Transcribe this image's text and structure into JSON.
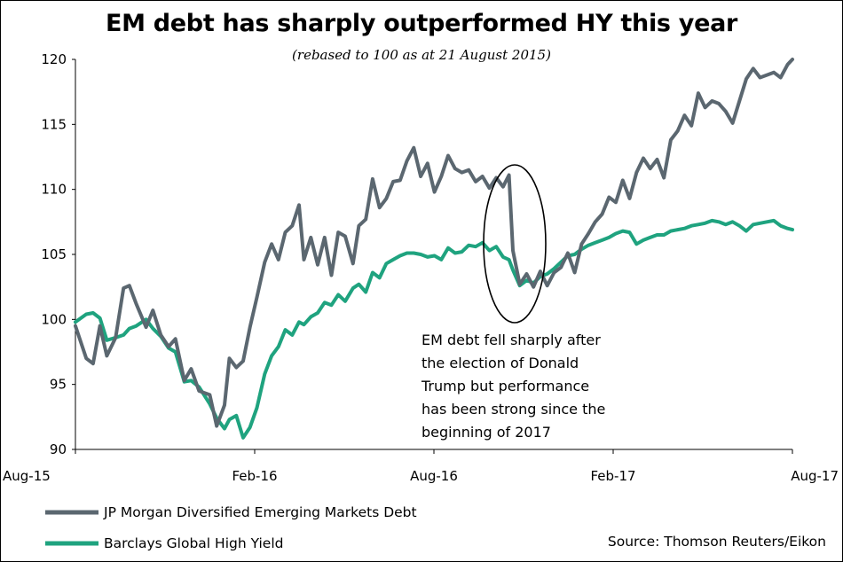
{
  "title": "EM debt has sharply outperformed HY this year",
  "subtitle": "(rebased to 100 as at 21 August 2015)",
  "source": "Source: Thomson Reuters/Eikon",
  "annotation": [
    "EM debt fell sharply after",
    "the election of Donald",
    "Trump but performance",
    "has been strong since the",
    "beginning of 2017"
  ],
  "chart_data": {
    "type": "line",
    "title": "EM debt has sharply outperformed HY this year",
    "subtitle": "(rebased to 100 as at 21 August 2015)",
    "xlabel": "",
    "ylabel": "",
    "ylim": [
      90,
      120
    ],
    "yticks": [
      90,
      95,
      100,
      105,
      110,
      115,
      120
    ],
    "xticks": [
      "Aug-15",
      "Feb-16",
      "Aug-16",
      "Feb-17",
      "Aug-17"
    ],
    "xlim": [
      "2015-08-21",
      "2017-08-21"
    ],
    "grid": false,
    "legend": "bottom-left",
    "series": [
      {
        "name": "JP Morgan Diversified Emerging Markets Debt",
        "color": "#5b6770",
        "points": [
          [
            "2015-08-21",
            99.5
          ],
          [
            "2015-09-01",
            97.0
          ],
          [
            "2015-09-08",
            96.6
          ],
          [
            "2015-09-15",
            99.5
          ],
          [
            "2015-09-22",
            97.2
          ],
          [
            "2015-10-01",
            98.6
          ],
          [
            "2015-10-09",
            102.4
          ],
          [
            "2015-10-15",
            102.6
          ],
          [
            "2015-10-22",
            101.2
          ],
          [
            "2015-11-01",
            99.4
          ],
          [
            "2015-11-08",
            100.7
          ],
          [
            "2015-11-16",
            98.8
          ],
          [
            "2015-11-24",
            97.9
          ],
          [
            "2015-12-01",
            98.5
          ],
          [
            "2015-12-10",
            95.3
          ],
          [
            "2015-12-17",
            96.2
          ],
          [
            "2015-12-25",
            94.5
          ],
          [
            "2016-01-05",
            94.2
          ],
          [
            "2016-01-12",
            91.8
          ],
          [
            "2016-01-20",
            93.4
          ],
          [
            "2016-01-25",
            97.0
          ],
          [
            "2016-02-01",
            96.3
          ],
          [
            "2016-02-08",
            96.8
          ],
          [
            "2016-02-15",
            99.4
          ],
          [
            "2016-02-22",
            101.7
          ],
          [
            "2016-03-01",
            104.4
          ],
          [
            "2016-03-08",
            105.8
          ],
          [
            "2016-03-15",
            104.6
          ],
          [
            "2016-03-22",
            106.7
          ],
          [
            "2016-03-29",
            107.2
          ],
          [
            "2016-04-05",
            108.8
          ],
          [
            "2016-04-10",
            104.6
          ],
          [
            "2016-04-17",
            106.3
          ],
          [
            "2016-04-24",
            104.2
          ],
          [
            "2016-05-01",
            106.3
          ],
          [
            "2016-05-08",
            103.4
          ],
          [
            "2016-05-15",
            106.7
          ],
          [
            "2016-05-22",
            106.4
          ],
          [
            "2016-05-30",
            104.3
          ],
          [
            "2016-06-05",
            107.2
          ],
          [
            "2016-06-12",
            107.7
          ],
          [
            "2016-06-19",
            110.8
          ],
          [
            "2016-06-26",
            108.6
          ],
          [
            "2016-07-03",
            109.3
          ],
          [
            "2016-07-10",
            110.6
          ],
          [
            "2016-07-17",
            110.7
          ],
          [
            "2016-07-24",
            112.2
          ],
          [
            "2016-07-31",
            113.2
          ],
          [
            "2016-08-07",
            111.0
          ],
          [
            "2016-08-14",
            112.0
          ],
          [
            "2016-08-21",
            109.8
          ],
          [
            "2016-08-28",
            111.0
          ],
          [
            "2016-09-04",
            112.6
          ],
          [
            "2016-09-11",
            111.6
          ],
          [
            "2016-09-18",
            111.3
          ],
          [
            "2016-09-25",
            111.5
          ],
          [
            "2016-10-02",
            110.6
          ],
          [
            "2016-10-09",
            111.0
          ],
          [
            "2016-10-16",
            110.1
          ],
          [
            "2016-10-23",
            110.9
          ],
          [
            "2016-10-30",
            110.2
          ],
          [
            "2016-11-05",
            111.1
          ],
          [
            "2016-11-09",
            105.3
          ],
          [
            "2016-11-16",
            102.7
          ],
          [
            "2016-11-23",
            103.5
          ],
          [
            "2016-11-30",
            102.5
          ],
          [
            "2016-12-07",
            103.7
          ],
          [
            "2016-12-14",
            102.6
          ],
          [
            "2016-12-21",
            103.6
          ],
          [
            "2016-12-28",
            104.0
          ],
          [
            "2017-01-04",
            105.1
          ],
          [
            "2017-01-11",
            103.6
          ],
          [
            "2017-01-18",
            105.8
          ],
          [
            "2017-01-25",
            106.6
          ],
          [
            "2017-02-01",
            107.5
          ],
          [
            "2017-02-08",
            108.1
          ],
          [
            "2017-02-15",
            109.4
          ],
          [
            "2017-02-22",
            109.0
          ],
          [
            "2017-03-01",
            110.7
          ],
          [
            "2017-03-08",
            109.3
          ],
          [
            "2017-03-15",
            111.3
          ],
          [
            "2017-03-22",
            112.4
          ],
          [
            "2017-03-29",
            111.6
          ],
          [
            "2017-04-05",
            112.3
          ],
          [
            "2017-04-12",
            110.9
          ],
          [
            "2017-04-19",
            113.8
          ],
          [
            "2017-04-26",
            114.5
          ],
          [
            "2017-05-03",
            115.7
          ],
          [
            "2017-05-10",
            114.9
          ],
          [
            "2017-05-17",
            117.4
          ],
          [
            "2017-05-24",
            116.3
          ],
          [
            "2017-05-31",
            116.8
          ],
          [
            "2017-06-07",
            116.6
          ],
          [
            "2017-06-14",
            116.0
          ],
          [
            "2017-06-21",
            115.1
          ],
          [
            "2017-06-28",
            116.8
          ],
          [
            "2017-07-05",
            118.5
          ],
          [
            "2017-07-12",
            119.3
          ],
          [
            "2017-07-19",
            118.6
          ],
          [
            "2017-07-26",
            118.8
          ],
          [
            "2017-08-02",
            119.0
          ],
          [
            "2017-08-09",
            118.6
          ],
          [
            "2017-08-16",
            119.6
          ],
          [
            "2017-08-21",
            120.0
          ]
        ]
      },
      {
        "name": "Barclays Global High Yield",
        "color": "#1fa37f",
        "points": [
          [
            "2015-08-21",
            99.8
          ],
          [
            "2015-09-01",
            100.4
          ],
          [
            "2015-09-08",
            100.5
          ],
          [
            "2015-09-15",
            100.1
          ],
          [
            "2015-09-22",
            98.4
          ],
          [
            "2015-10-01",
            98.6
          ],
          [
            "2015-10-09",
            98.8
          ],
          [
            "2015-10-15",
            99.3
          ],
          [
            "2015-10-22",
            99.5
          ],
          [
            "2015-11-01",
            100.0
          ],
          [
            "2015-11-08",
            99.3
          ],
          [
            "2015-11-16",
            98.7
          ],
          [
            "2015-11-24",
            97.8
          ],
          [
            "2015-12-01",
            97.5
          ],
          [
            "2015-12-10",
            95.2
          ],
          [
            "2015-12-17",
            95.3
          ],
          [
            "2015-12-25",
            94.8
          ],
          [
            "2016-01-05",
            93.5
          ],
          [
            "2016-01-12",
            92.4
          ],
          [
            "2016-01-20",
            91.6
          ],
          [
            "2016-01-25",
            92.3
          ],
          [
            "2016-02-01",
            92.6
          ],
          [
            "2016-02-08",
            90.9
          ],
          [
            "2016-02-15",
            91.7
          ],
          [
            "2016-02-22",
            93.2
          ],
          [
            "2016-03-01",
            95.8
          ],
          [
            "2016-03-08",
            97.2
          ],
          [
            "2016-03-15",
            97.9
          ],
          [
            "2016-03-22",
            99.2
          ],
          [
            "2016-03-29",
            98.8
          ],
          [
            "2016-04-05",
            99.8
          ],
          [
            "2016-04-10",
            99.6
          ],
          [
            "2016-04-17",
            100.2
          ],
          [
            "2016-04-24",
            100.5
          ],
          [
            "2016-05-01",
            101.3
          ],
          [
            "2016-05-08",
            101.1
          ],
          [
            "2016-05-15",
            101.9
          ],
          [
            "2016-05-22",
            101.4
          ],
          [
            "2016-05-30",
            102.4
          ],
          [
            "2016-06-05",
            102.7
          ],
          [
            "2016-06-12",
            102.1
          ],
          [
            "2016-06-19",
            103.6
          ],
          [
            "2016-06-26",
            103.2
          ],
          [
            "2016-07-03",
            104.3
          ],
          [
            "2016-07-10",
            104.6
          ],
          [
            "2016-07-17",
            104.9
          ],
          [
            "2016-07-24",
            105.1
          ],
          [
            "2016-07-31",
            105.1
          ],
          [
            "2016-08-07",
            105.0
          ],
          [
            "2016-08-14",
            104.8
          ],
          [
            "2016-08-21",
            104.9
          ],
          [
            "2016-08-28",
            104.6
          ],
          [
            "2016-09-04",
            105.5
          ],
          [
            "2016-09-11",
            105.1
          ],
          [
            "2016-09-18",
            105.2
          ],
          [
            "2016-09-25",
            105.7
          ],
          [
            "2016-10-02",
            105.6
          ],
          [
            "2016-10-09",
            105.9
          ],
          [
            "2016-10-16",
            105.3
          ],
          [
            "2016-10-23",
            105.6
          ],
          [
            "2016-10-30",
            104.8
          ],
          [
            "2016-11-05",
            104.6
          ],
          [
            "2016-11-09",
            103.8
          ],
          [
            "2016-11-16",
            102.6
          ],
          [
            "2016-11-23",
            103.0
          ],
          [
            "2016-11-30",
            102.8
          ],
          [
            "2016-12-07",
            103.3
          ],
          [
            "2016-12-14",
            103.5
          ],
          [
            "2016-12-21",
            103.9
          ],
          [
            "2016-12-28",
            104.4
          ],
          [
            "2017-01-04",
            104.9
          ],
          [
            "2017-01-11",
            105.0
          ],
          [
            "2017-01-18",
            105.4
          ],
          [
            "2017-01-25",
            105.7
          ],
          [
            "2017-02-01",
            105.9
          ],
          [
            "2017-02-08",
            106.1
          ],
          [
            "2017-02-15",
            106.3
          ],
          [
            "2017-02-22",
            106.6
          ],
          [
            "2017-03-01",
            106.8
          ],
          [
            "2017-03-08",
            106.7
          ],
          [
            "2017-03-15",
            105.8
          ],
          [
            "2017-03-22",
            106.1
          ],
          [
            "2017-03-29",
            106.3
          ],
          [
            "2017-04-05",
            106.5
          ],
          [
            "2017-04-12",
            106.5
          ],
          [
            "2017-04-19",
            106.8
          ],
          [
            "2017-04-26",
            106.9
          ],
          [
            "2017-05-03",
            107.0
          ],
          [
            "2017-05-10",
            107.2
          ],
          [
            "2017-05-17",
            107.3
          ],
          [
            "2017-05-24",
            107.4
          ],
          [
            "2017-05-31",
            107.6
          ],
          [
            "2017-06-07",
            107.5
          ],
          [
            "2017-06-14",
            107.3
          ],
          [
            "2017-06-21",
            107.5
          ],
          [
            "2017-06-28",
            107.2
          ],
          [
            "2017-07-05",
            106.8
          ],
          [
            "2017-07-12",
            107.3
          ],
          [
            "2017-07-19",
            107.4
          ],
          [
            "2017-07-26",
            107.5
          ],
          [
            "2017-08-02",
            107.6
          ],
          [
            "2017-08-09",
            107.2
          ],
          [
            "2017-08-16",
            107.0
          ],
          [
            "2017-08-21",
            106.9
          ]
        ]
      }
    ]
  }
}
